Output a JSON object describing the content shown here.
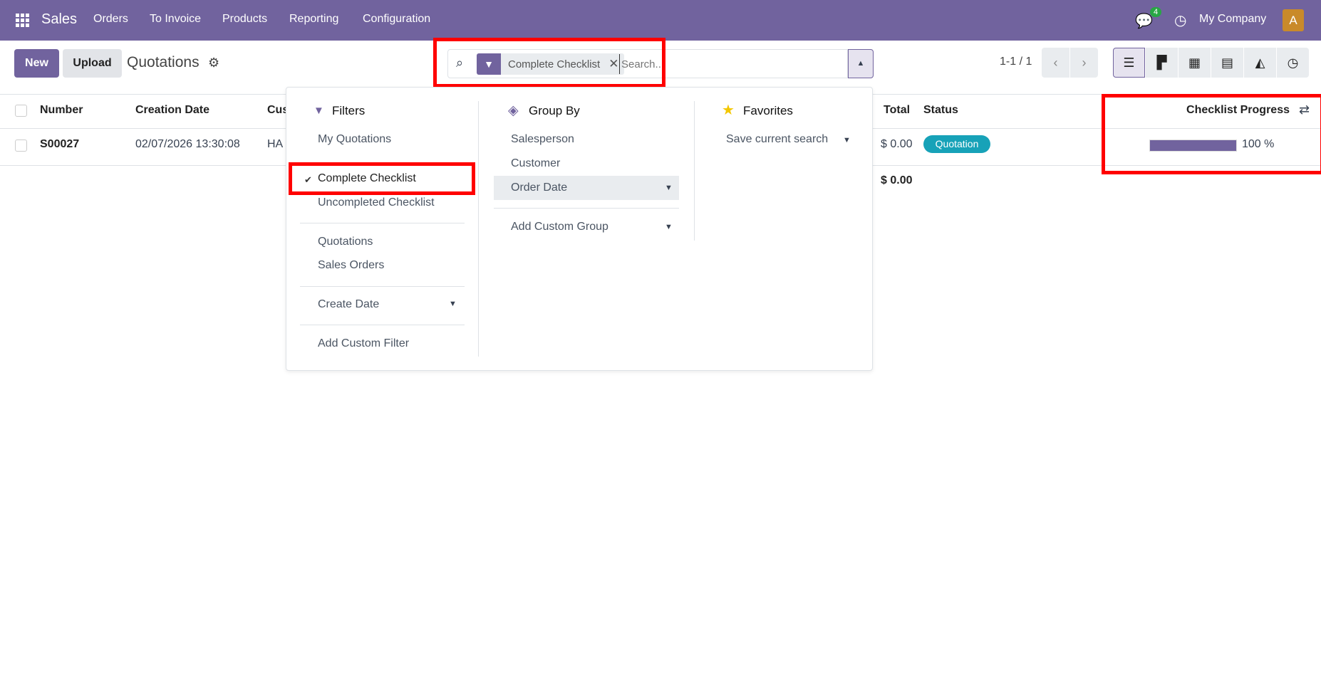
{
  "navbar": {
    "app": "Sales",
    "menu": [
      "Orders",
      "To Invoice",
      "Products",
      "Reporting",
      "Configuration"
    ],
    "messages_count": "4",
    "company": "My Company",
    "avatar_letter": "A"
  },
  "toolbar": {
    "new_label": "New",
    "upload_label": "Upload",
    "title": "Quotations"
  },
  "search": {
    "facet": "Complete Checklist",
    "placeholder": "Search..."
  },
  "pager": {
    "text": "1-1 / 1"
  },
  "views": [
    "list",
    "kanban",
    "calendar",
    "pivot",
    "graph",
    "activity"
  ],
  "table": {
    "columns": [
      "Number",
      "Creation Date",
      "Cus",
      "Total",
      "Status",
      "Checklist Progress"
    ],
    "rows": [
      {
        "number": "S00027",
        "creation_date": "02/07/2026 13:30:08",
        "customer": "HA",
        "total": "$ 0.00",
        "status": "Quotation",
        "progress_text": "100 %",
        "progress": 100
      }
    ],
    "footer_total": "$ 0.00"
  },
  "dropdown": {
    "filters": {
      "heading": "Filters",
      "items": [
        "My Quotations",
        "Complete Checklist",
        "Uncompleted Checklist",
        "Quotations",
        "Sales Orders",
        "Create Date",
        "Add Custom Filter"
      ],
      "checked": "Complete Checklist"
    },
    "group_by": {
      "heading": "Group By",
      "items": [
        "Salesperson",
        "Customer",
        "Order Date",
        "Add Custom Group"
      ]
    },
    "favorites": {
      "heading": "Favorites",
      "items": [
        "Save current search"
      ]
    }
  },
  "colors": {
    "brand": "#71639e",
    "badge": "#17a2b8",
    "highlight": "#ff0000"
  }
}
